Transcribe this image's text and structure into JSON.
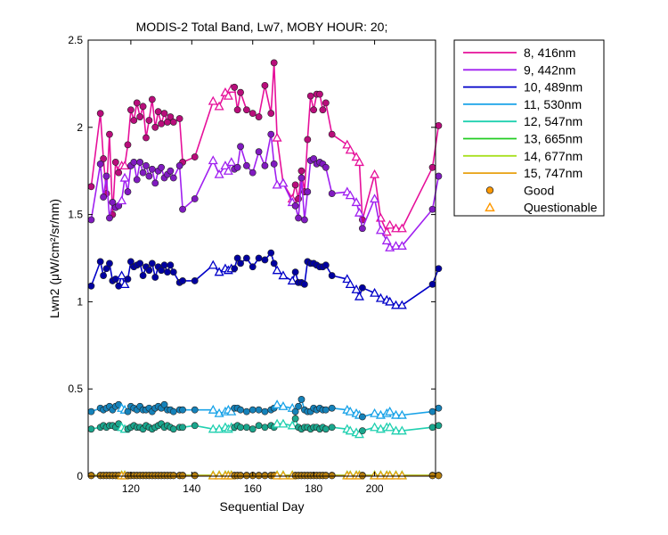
{
  "chart_data": {
    "type": "line",
    "title": "MODIS-2 Total Band, Lw7, MOBY HOUR: 20;",
    "xlabel": "Sequential Day",
    "ylabel": "Lwn2 (μW/cm²/sr/nm)",
    "xlim": [
      106,
      220
    ],
    "ylim": [
      0,
      2.5
    ],
    "xticks": [
      120,
      140,
      160,
      180,
      200
    ],
    "yticks": [
      0,
      0.5,
      1,
      1.5,
      2,
      2.5
    ],
    "ytick_labels": [
      "0",
      "0.5",
      "1",
      "1.5",
      "2",
      "2.5"
    ],
    "grid": false,
    "legend_position": "outside-right",
    "marker_legend": [
      {
        "label": "Good",
        "marker": "circle",
        "color": "#ff9900"
      },
      {
        "label": "Questionable",
        "marker": "triangle",
        "color": "#ff9900"
      }
    ],
    "x": [
      107,
      110,
      111,
      112,
      113,
      114,
      115,
      116,
      117,
      118,
      119,
      120,
      121,
      122,
      123,
      124,
      125,
      126,
      127,
      128,
      129,
      130,
      131,
      132,
      133,
      134,
      136,
      137,
      141,
      147,
      149,
      151,
      152,
      153,
      154,
      155,
      156,
      158,
      160,
      162,
      164,
      166,
      167,
      168,
      170,
      173,
      174,
      175,
      176,
      177,
      178,
      179,
      180,
      181,
      182,
      183,
      184,
      186,
      191,
      192,
      194,
      195,
      196,
      200,
      202,
      204,
      205,
      207,
      209,
      219,
      221
    ],
    "quality": [
      "G",
      "G",
      "G",
      "G",
      "G",
      "G",
      "G",
      "G",
      "Q",
      "Q",
      "G",
      "G",
      "G",
      "G",
      "G",
      "G",
      "G",
      "G",
      "G",
      "G",
      "G",
      "G",
      "G",
      "G",
      "G",
      "G",
      "G",
      "G",
      "G",
      "Q",
      "Q",
      "Q",
      "Q",
      "Q",
      "G",
      "G",
      "G",
      "G",
      "G",
      "G",
      "G",
      "G",
      "G",
      "Q",
      "Q",
      "Q",
      "G",
      "G",
      "G",
      "G",
      "G",
      "G",
      "G",
      "G",
      "G",
      "G",
      "G",
      "G",
      "Q",
      "Q",
      "Q",
      "Q",
      "G",
      "Q",
      "Q",
      "Q",
      "Q",
      "Q",
      "Q",
      "G",
      "G"
    ],
    "series": [
      {
        "name": "8, 416nm",
        "color": "#e6109a",
        "values": [
          1.66,
          2.08,
          1.82,
          1.62,
          1.96,
          1.5,
          1.8,
          1.74,
          1.78,
          1.78,
          1.9,
          2.1,
          2.04,
          2.14,
          2.06,
          2.12,
          1.94,
          2.04,
          2.16,
          2.0,
          2.09,
          2.02,
          2.08,
          2.03,
          2.06,
          2.03,
          2.05,
          1.8,
          1.83,
          2.15,
          2.12,
          2.2,
          2.18,
          2.22,
          2.23,
          2.1,
          2.2,
          2.1,
          2.08,
          2.06,
          2.24,
          2.08,
          2.37,
          1.94,
          1.68,
          1.59,
          1.67,
          1.59,
          1.75,
          1.63,
          1.93,
          2.18,
          2.1,
          2.19,
          2.19,
          2.1,
          2.14,
          1.96,
          1.9,
          1.87,
          1.83,
          1.8,
          1.47,
          1.73,
          1.48,
          1.4,
          1.44,
          1.42,
          1.42,
          1.77,
          2.01
        ]
      },
      {
        "name": "9, 442nm",
        "color": "#a020f0",
        "values": [
          1.47,
          1.79,
          1.6,
          1.72,
          1.48,
          1.57,
          1.54,
          1.55,
          1.58,
          1.71,
          1.63,
          1.78,
          1.8,
          1.7,
          1.8,
          1.74,
          1.78,
          1.72,
          1.76,
          1.68,
          1.75,
          1.77,
          1.71,
          1.73,
          1.75,
          1.71,
          1.78,
          1.53,
          1.59,
          1.81,
          1.73,
          1.78,
          1.75,
          1.8,
          1.76,
          1.77,
          1.89,
          1.78,
          1.74,
          1.86,
          1.78,
          1.96,
          1.79,
          1.67,
          1.68,
          1.57,
          1.55,
          1.48,
          1.71,
          1.47,
          1.63,
          1.81,
          1.82,
          1.79,
          1.8,
          1.79,
          1.77,
          1.62,
          1.63,
          1.61,
          1.57,
          1.51,
          1.42,
          1.59,
          1.41,
          1.35,
          1.31,
          1.32,
          1.32,
          1.53,
          1.72
        ]
      },
      {
        "name": "10, 489nm",
        "color": "#0000c8",
        "values": [
          1.09,
          1.23,
          1.15,
          1.19,
          1.22,
          1.12,
          1.13,
          1.09,
          1.15,
          1.1,
          1.13,
          1.23,
          1.2,
          1.21,
          1.22,
          1.15,
          1.2,
          1.18,
          1.22,
          1.14,
          1.2,
          1.18,
          1.21,
          1.17,
          1.21,
          1.17,
          1.11,
          1.12,
          1.12,
          1.21,
          1.17,
          1.19,
          1.18,
          1.19,
          1.19,
          1.25,
          1.22,
          1.25,
          1.2,
          1.25,
          1.24,
          1.28,
          1.22,
          1.18,
          1.15,
          1.12,
          1.17,
          1.11,
          1.11,
          1.1,
          1.23,
          1.22,
          1.22,
          1.21,
          1.2,
          1.2,
          1.21,
          1.15,
          1.13,
          1.1,
          1.07,
          1.03,
          1.08,
          1.05,
          1.02,
          1.01,
          1.0,
          0.98,
          0.98,
          1.1,
          1.19
        ]
      },
      {
        "name": "11, 530nm",
        "color": "#1aa3e8",
        "values": [
          0.37,
          0.39,
          0.38,
          0.39,
          0.4,
          0.38,
          0.4,
          0.41,
          0.39,
          0.38,
          0.37,
          0.4,
          0.39,
          0.38,
          0.4,
          0.38,
          0.38,
          0.39,
          0.37,
          0.39,
          0.4,
          0.39,
          0.41,
          0.38,
          0.38,
          0.37,
          0.38,
          0.38,
          0.38,
          0.38,
          0.36,
          0.37,
          0.38,
          0.37,
          0.39,
          0.39,
          0.38,
          0.37,
          0.38,
          0.38,
          0.37,
          0.38,
          0.39,
          0.41,
          0.4,
          0.39,
          0.37,
          0.4,
          0.44,
          0.38,
          0.37,
          0.37,
          0.39,
          0.38,
          0.39,
          0.38,
          0.38,
          0.39,
          0.38,
          0.37,
          0.36,
          0.35,
          0.34,
          0.36,
          0.35,
          0.36,
          0.37,
          0.35,
          0.35,
          0.37,
          0.39
        ]
      },
      {
        "name": "12, 547nm",
        "color": "#20d0b0",
        "values": [
          0.27,
          0.28,
          0.29,
          0.28,
          0.29,
          0.29,
          0.28,
          0.3,
          0.28,
          0.27,
          0.27,
          0.28,
          0.29,
          0.28,
          0.28,
          0.27,
          0.29,
          0.28,
          0.27,
          0.28,
          0.29,
          0.3,
          0.28,
          0.29,
          0.28,
          0.27,
          0.28,
          0.28,
          0.29,
          0.27,
          0.27,
          0.28,
          0.27,
          0.28,
          0.28,
          0.29,
          0.28,
          0.28,
          0.27,
          0.29,
          0.28,
          0.29,
          0.28,
          0.3,
          0.3,
          0.29,
          0.33,
          0.28,
          0.27,
          0.28,
          0.28,
          0.27,
          0.28,
          0.28,
          0.27,
          0.28,
          0.27,
          0.28,
          0.27,
          0.26,
          0.25,
          0.24,
          0.26,
          0.28,
          0.27,
          0.28,
          0.28,
          0.26,
          0.26,
          0.28,
          0.29
        ]
      },
      {
        "name": "13, 665nm",
        "color": "#22cc22",
        "values": [
          0.005,
          0.005,
          0.005,
          0.005,
          0.005,
          0.005,
          0.005,
          0.005,
          0.005,
          0.005,
          0.005,
          0.005,
          0.005,
          0.005,
          0.005,
          0.005,
          0.005,
          0.005,
          0.005,
          0.005,
          0.005,
          0.005,
          0.005,
          0.005,
          0.005,
          0.005,
          0.005,
          0.005,
          0.005,
          0.005,
          0.005,
          0.005,
          0.005,
          0.005,
          0.005,
          0.005,
          0.005,
          0.005,
          0.005,
          0.005,
          0.005,
          0.005,
          0.005,
          0.005,
          0.005,
          0.005,
          0.005,
          0.005,
          0.005,
          0.005,
          0.005,
          0.005,
          0.005,
          0.005,
          0.005,
          0.005,
          0.005,
          0.005,
          0.005,
          0.005,
          0.005,
          0.005,
          0.005,
          0.005,
          0.005,
          0.005,
          0.005,
          0.005,
          0.005,
          0.005,
          0.005
        ]
      },
      {
        "name": "14, 677nm",
        "color": "#a8e020",
        "values": [
          0.004,
          0.004,
          0.004,
          0.004,
          0.004,
          0.004,
          0.004,
          0.004,
          0.004,
          0.004,
          0.004,
          0.004,
          0.004,
          0.004,
          0.004,
          0.004,
          0.004,
          0.004,
          0.004,
          0.004,
          0.004,
          0.004,
          0.004,
          0.004,
          0.004,
          0.004,
          0.004,
          0.004,
          0.004,
          0.004,
          0.004,
          0.004,
          0.004,
          0.004,
          0.004,
          0.004,
          0.004,
          0.004,
          0.004,
          0.004,
          0.004,
          0.004,
          0.004,
          0.004,
          0.004,
          0.004,
          0.004,
          0.004,
          0.004,
          0.004,
          0.004,
          0.004,
          0.004,
          0.004,
          0.004,
          0.004,
          0.004,
          0.004,
          0.004,
          0.004,
          0.004,
          0.004,
          0.004,
          0.004,
          0.004,
          0.004,
          0.004,
          0.004,
          0.004,
          0.004,
          0.004
        ]
      },
      {
        "name": "15, 747nm",
        "color": "#e8a010",
        "values": [
          0.003,
          0.003,
          0.003,
          0.003,
          0.003,
          0.003,
          0.003,
          0.003,
          0.003,
          0.003,
          0.003,
          0.003,
          0.003,
          0.003,
          0.003,
          0.003,
          0.003,
          0.003,
          0.003,
          0.003,
          0.003,
          0.003,
          0.003,
          0.003,
          0.003,
          0.003,
          0.003,
          0.003,
          0.003,
          0.003,
          0.003,
          0.003,
          0.003,
          0.003,
          0.003,
          0.003,
          0.003,
          0.003,
          0.003,
          0.003,
          0.003,
          0.003,
          0.003,
          0.003,
          0.003,
          0.003,
          0.003,
          0.003,
          0.003,
          0.003,
          0.003,
          0.003,
          0.003,
          0.003,
          0.003,
          0.003,
          0.003,
          0.003,
          0.003,
          0.003,
          0.003,
          0.003,
          0.003,
          0.003,
          0.003,
          0.003,
          0.003,
          0.003,
          0.003,
          0.003,
          0.003
        ]
      }
    ]
  }
}
